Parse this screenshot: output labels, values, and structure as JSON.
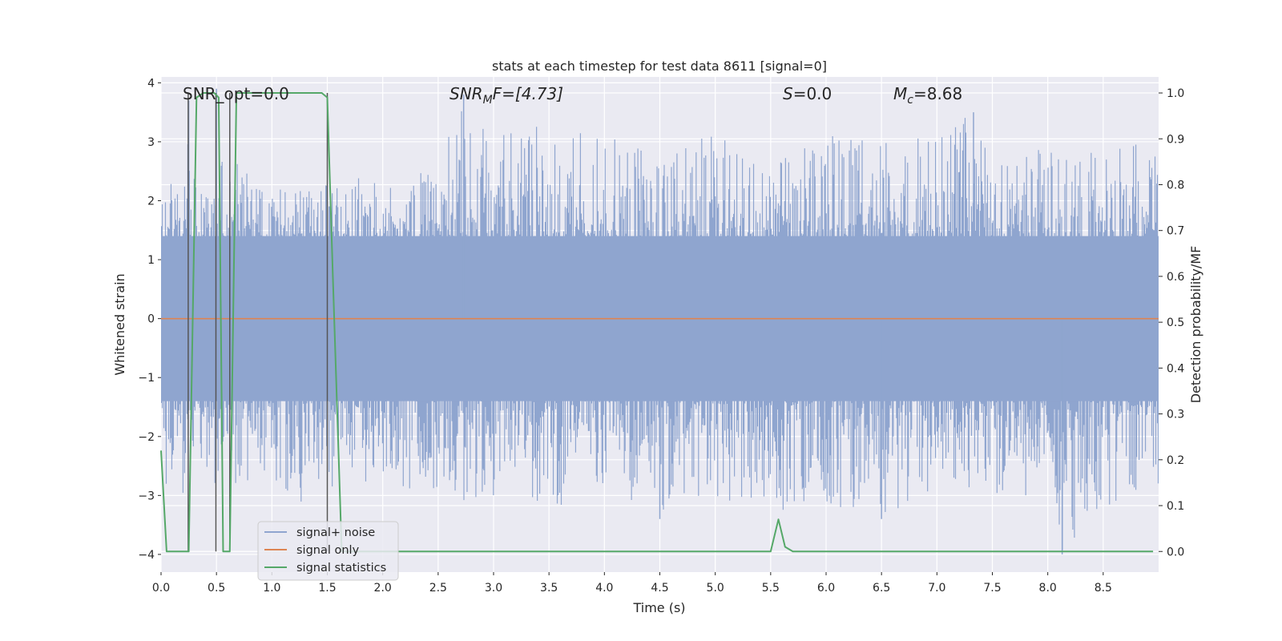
{
  "chart_data": {
    "type": "line",
    "title": "stats at each timestep for test data 8611 [signal=0]",
    "xlabel": "Time (s)",
    "ylabel_left": "Whitened strain",
    "ylabel_right": "Detection probability/MF",
    "xlim": [
      0.0,
      9.0
    ],
    "ylim_left": [
      -4.3,
      4.1
    ],
    "ylim_right": [
      -0.045,
      1.035
    ],
    "x_ticks": [
      0.0,
      0.5,
      1.0,
      1.5,
      2.0,
      2.5,
      3.0,
      3.5,
      4.0,
      4.5,
      5.0,
      5.5,
      6.0,
      6.5,
      7.0,
      7.5,
      8.0,
      8.5
    ],
    "x_tick_labels": [
      "0.0",
      "0.5",
      "1.0",
      "1.5",
      "2.0",
      "2.5",
      "3.0",
      "3.5",
      "4.0",
      "4.5",
      "5.0",
      "5.5",
      "6.0",
      "6.5",
      "7.0",
      "7.5",
      "8.0",
      "8.5"
    ],
    "y_left_ticks": [
      4,
      3,
      2,
      1,
      0,
      -1,
      -2,
      -3,
      -4
    ],
    "y_left_tick_labels": [
      "4",
      "3",
      "2",
      "1",
      "0",
      "−1",
      "−2",
      "−3",
      "−4"
    ],
    "y_right_ticks": [
      1.0,
      0.9,
      0.8,
      0.7,
      0.6,
      0.5,
      0.4,
      0.3,
      0.2,
      0.1,
      0.0
    ],
    "y_right_tick_labels": [
      "1.0",
      "0.9",
      "0.8",
      "0.7",
      "0.6",
      "0.5",
      "0.4",
      "0.3",
      "0.2",
      "0.1",
      "0.0"
    ],
    "grid": true,
    "legend_position": "lower-left",
    "annotations": {
      "snr_opt": "SNR_opt=0.0",
      "snr_mf_main": "SNR",
      "snr_mf_sub": "M",
      "snr_mf_rest": "F=[4.73]",
      "s_main": "S",
      "s_rest": "=0.0",
      "mc_main": "M",
      "mc_sub": "c",
      "mc_rest": "=8.68"
    },
    "series": [
      {
        "name": "signal+ noise",
        "axis": "left",
        "color": "#8fa5cf",
        "description_envelope": {
          "x": [
            0.0,
            0.2,
            0.25,
            0.4,
            0.5,
            0.7,
            1.0,
            1.3,
            1.5,
            1.6,
            2.0,
            2.5,
            2.7,
            3.0,
            3.5,
            4.0,
            4.5,
            5.0,
            5.5,
            6.0,
            6.5,
            7.0,
            7.3,
            7.5,
            8.0,
            8.13,
            8.5,
            9.0
          ],
          "max": [
            2.2,
            2.8,
            3.7,
            2.4,
            3.0,
            2.6,
            2.3,
            2.2,
            2.7,
            2.4,
            2.4,
            2.6,
            3.8,
            3.1,
            3.3,
            3.1,
            2.8,
            3.2,
            2.6,
            3.2,
            3.0,
            3.1,
            3.5,
            2.9,
            2.9,
            2.7,
            2.9,
            3.0
          ],
          "min": [
            -2.8,
            -3.0,
            -3.2,
            -2.7,
            -3.0,
            -2.8,
            -2.8,
            -3.2,
            -2.9,
            -2.8,
            -2.8,
            -3.2,
            -3.1,
            -3.0,
            -3.3,
            -2.9,
            -3.4,
            -3.2,
            -3.3,
            -3.2,
            -3.4,
            -3.0,
            -3.0,
            -3.2,
            -3.1,
            -4.0,
            -3.2,
            -2.9
          ]
        }
      },
      {
        "name": "signal only",
        "axis": "left",
        "color": "#dd8452",
        "x": [
          0.0,
          9.0
        ],
        "y": [
          0.0,
          0.0
        ]
      },
      {
        "name": "signal statistics",
        "axis": "right",
        "color": "#55a868",
        "x": [
          0.0,
          0.05,
          0.25,
          0.32,
          0.38,
          0.48,
          0.52,
          0.56,
          0.62,
          0.68,
          0.72,
          1.45,
          1.5,
          1.55,
          1.63,
          5.5,
          5.57,
          5.63,
          5.7,
          8.95
        ],
        "y": [
          0.22,
          0.0,
          0.0,
          0.99,
          1.0,
          1.0,
          0.99,
          0.0,
          0.0,
          1.0,
          1.0,
          1.0,
          0.99,
          0.6,
          0.0,
          0.0,
          0.07,
          0.01,
          0.0,
          0.0
        ]
      }
    ],
    "vertical_markers": {
      "color": "#555555",
      "x": [
        0.245,
        0.495,
        0.62,
        1.5
      ]
    }
  }
}
